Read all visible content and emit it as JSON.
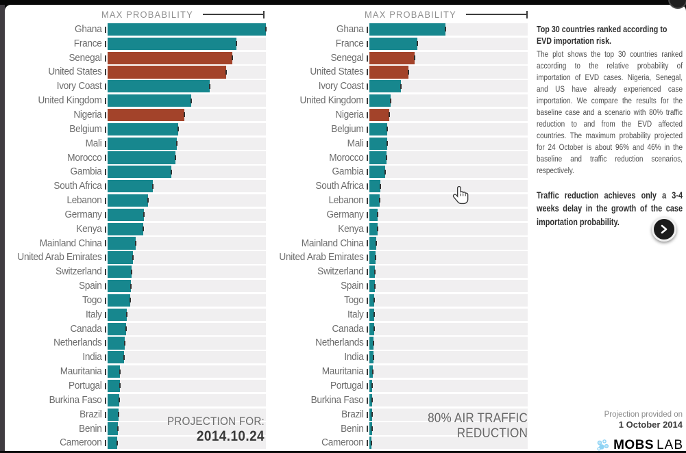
{
  "chart_data": {
    "type": "bar",
    "orientation": "horizontal",
    "axis_header": "MAX PROBABILITY",
    "unit": "%",
    "xlim": [
      0,
      96
    ],
    "grid": false,
    "categories": [
      "Ghana",
      "France",
      "Senegal",
      "United States",
      "Ivory Coast",
      "United Kingdom",
      "Nigeria",
      "Belgium",
      "Mali",
      "Morocco",
      "Gambia",
      "South Africa",
      "Lebanon",
      "Germany",
      "Kenya",
      "Mainland China",
      "United Arab Emirates",
      "Switzerland",
      "Spain",
      "Togo",
      "Italy",
      "Canada",
      "Netherlands",
      "India",
      "Mauritania",
      "Portugal",
      "Burkina Faso",
      "Brazil",
      "Benin",
      "Cameroon"
    ],
    "series": [
      {
        "name": "Baseline projection for 2014.10.24",
        "caption_line1": "PROJECTION FOR:",
        "caption_line2": "2014.10.24",
        "values": [
          96,
          78,
          75.5,
          72,
          62,
          50.5,
          46.5,
          43,
          42,
          41,
          38.5,
          27.5,
          24.5,
          22,
          21.5,
          17,
          15.5,
          14.5,
          14,
          13.8,
          11.7,
          11.3,
          10.5,
          10,
          7.5,
          7.5,
          7,
          6.7,
          6.3,
          6
        ]
      },
      {
        "name": "80% air traffic reduction scenario",
        "caption_line1": "80% AIR TRAFFIC",
        "caption_line2": "REDUCTION",
        "values": [
          46,
          29,
          27.5,
          23.5,
          19,
          13,
          12,
          11,
          10.8,
          10.5,
          9.6,
          6.7,
          6.3,
          5,
          5,
          4.2,
          3.8,
          3.4,
          3.3,
          3,
          2.9,
          2.9,
          2.5,
          2.5,
          2.1,
          1.8,
          1.7,
          1.7,
          1.6,
          1.3
        ]
      }
    ],
    "highlighted_categories": [
      "Senegal",
      "United States",
      "Nigeria"
    ],
    "colors": {
      "bar": "#17878e",
      "highlight": "#a3432a",
      "track": "#f0eff0"
    }
  },
  "panel": {
    "title": "Top 30 countries ranked according to EVD importation risk.",
    "body": "The plot shows the top 30 countries ranked according to the relative probability of importation of EVD cases. Nigeria, Senegal, and US have already experienced case importation. We compare the results for the baseline case and a scenario with 80% traffic reduction to and from the EVD affected countries. The maximum probability projected for 24 October is about 96% and 46% in the baseline and traffic reduction scenarios, respectively.",
    "note": "Traffic reduction achieves only a 3-4 weeks delay in the growth of the case importation probability.",
    "provided_label": "Projection provided on",
    "provided_date": "1 October 2014",
    "logo": {
      "mobs": "MOBS",
      "lab": "LAB",
      "mobs_color": "#54c0ee",
      "lab_color": "#abdcf5"
    }
  }
}
